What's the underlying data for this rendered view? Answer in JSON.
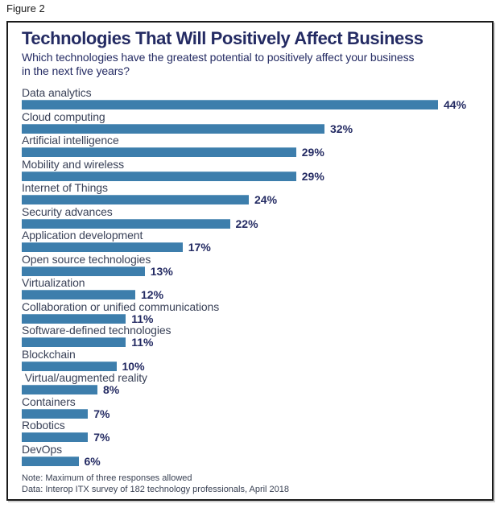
{
  "figure_label": "Figure 2",
  "header": {
    "title": "Technologies That Will Positively Affect Business",
    "subtitle_line1": "Which technologies have the greatest potential to positively affect your business",
    "subtitle_line2": "in the next five years?"
  },
  "chart_data": {
    "type": "bar",
    "orientation": "horizontal",
    "title": "Technologies That Will Positively Affect Business",
    "subtitle": "Which technologies have the greatest potential to positively affect your business in the next five years?",
    "categories": [
      "Data analytics",
      "Cloud computing",
      "Artificial intelligence",
      "Mobility and wireless",
      "Internet of Things",
      "Security advances",
      "Application development",
      "Open source technologies",
      "Virtualization",
      "Collaboration or unified communications",
      "Software-defined technologies",
      "Blockchain",
      " Virtual/augmented reality",
      "Containers",
      "Robotics",
      "DevOps"
    ],
    "values": [
      44,
      32,
      29,
      29,
      24,
      22,
      17,
      13,
      12,
      11,
      11,
      10,
      8,
      7,
      7,
      6
    ],
    "value_suffix": "%",
    "xlim": [
      0,
      48
    ],
    "data_labels": true,
    "grid": false,
    "legend": false,
    "bar_color": "#3D7EAC",
    "accent_text_color": "#242B63"
  },
  "notes": {
    "note": "Note: Maximum of three responses allowed",
    "source": "Data: Interop ITX survey of 182 technology professionals, April 2018"
  }
}
